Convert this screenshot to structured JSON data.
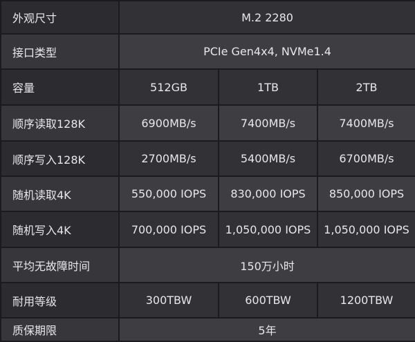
{
  "columns": [
    "",
    "512GB",
    "1TB",
    "2TB"
  ],
  "rows": [
    {
      "label": "外观尺寸",
      "merged": "M.2 2280"
    },
    {
      "label": "接口类型",
      "merged": "PCIe Gen4x4, NVMe1.4"
    },
    {
      "label": "容量",
      "values": [
        "512GB",
        "1TB",
        "2TB"
      ]
    },
    {
      "label": "顺序读取128K",
      "values": [
        "6900MB/s",
        "7400MB/s",
        "7400MB/s"
      ]
    },
    {
      "label": "顺序写入128K",
      "values": [
        "2700MB/s",
        "5400MB/s",
        "6700MB/s"
      ]
    },
    {
      "label": "随机读取4K",
      "values": [
        "550,000 IOPS",
        "830,000 IOPS",
        "850,000 IOPS"
      ]
    },
    {
      "label": "随机写入4K",
      "values": [
        "700,000 IOPS",
        "1,050,000 IOPS",
        "1,050,000 IOPS"
      ]
    },
    {
      "label": "平均无故障时间",
      "merged": "150万小时"
    },
    {
      "label": "耐用等级",
      "values": [
        "300TBW",
        "600TBW",
        "1200TBW"
      ]
    },
    {
      "label": "质保期限",
      "merged": "5年"
    }
  ]
}
